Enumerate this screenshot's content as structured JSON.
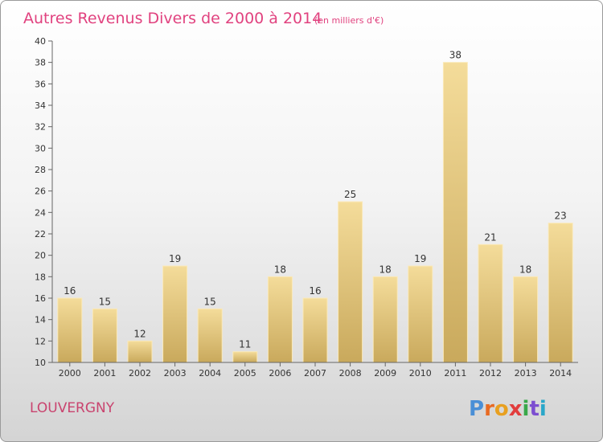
{
  "chart_data": {
    "type": "bar",
    "title": "Autres Revenus Divers de 2000 à 2014",
    "subtitle": "(en milliers d'€)",
    "categories": [
      "2000",
      "2001",
      "2002",
      "2003",
      "2004",
      "2005",
      "2006",
      "2007",
      "2008",
      "2009",
      "2010",
      "2011",
      "2012",
      "2013",
      "2014"
    ],
    "values": [
      16,
      15,
      12,
      19,
      15,
      11,
      18,
      16,
      25,
      18,
      19,
      38,
      21,
      18,
      23
    ],
    "ylim": [
      10,
      40
    ],
    "yticks": [
      10,
      12,
      14,
      16,
      18,
      20,
      22,
      24,
      26,
      28,
      30,
      32,
      34,
      36,
      38,
      40
    ],
    "grid": false,
    "bar_color": "#e6c97c"
  },
  "footer": {
    "city": "LOUVERGNY",
    "logo_text": "Proxiti"
  },
  "colors": {
    "title": "#e1427f",
    "city": "#c9446f",
    "logo_letters": [
      "#4a8fd6",
      "#e86a22",
      "#e8a020",
      "#e23d3d",
      "#3aa84a",
      "#7c4ed0",
      "#2aa7c9"
    ]
  }
}
